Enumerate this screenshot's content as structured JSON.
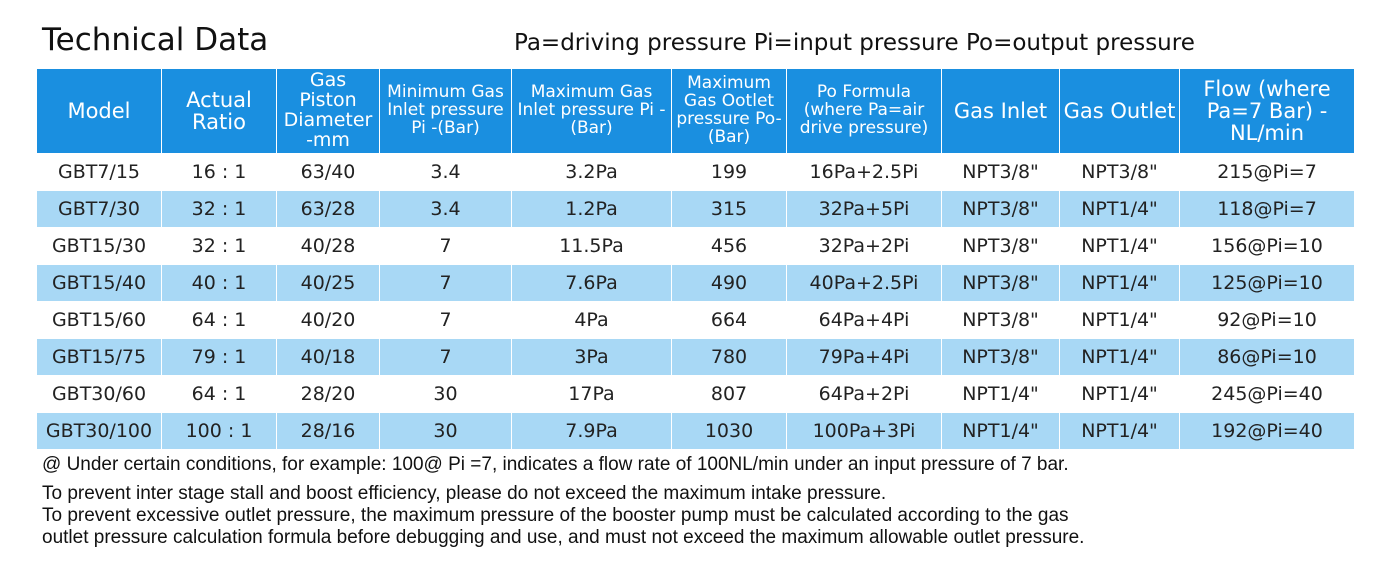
{
  "title": "Technical Data",
  "legend": "Pa=driving pressure  Pi=input pressure  Po=output pressure",
  "table": {
    "headers": [
      "Model",
      "Actual Ratio",
      "Gas Piston Diameter -mm",
      "Minimum Gas Inlet pressure Pi -(Bar)",
      "Maximum Gas Inlet pressure Pi -(Bar)",
      "Maximum Gas Ootlet pressure Po-(Bar)",
      "Po Formula (where Pa=air drive pressure)",
      "Gas Inlet",
      "Gas Outlet",
      "Flow (where Pa=7 Bar) -NL/min"
    ],
    "rows": [
      [
        "GBT7/15",
        "16 : 1",
        "63/40",
        "3.4",
        "3.2Pa",
        "199",
        "16Pa+2.5Pi",
        "NPT3/8\"",
        "NPT3/8\"",
        "215@Pi=7"
      ],
      [
        "GBT7/30",
        "32 : 1",
        "63/28",
        "3.4",
        "1.2Pa",
        "315",
        "32Pa+5Pi",
        "NPT3/8\"",
        "NPT1/4\"",
        "118@Pi=7"
      ],
      [
        "GBT15/30",
        "32 : 1",
        "40/28",
        "7",
        "11.5Pa",
        "456",
        "32Pa+2Pi",
        "NPT3/8\"",
        "NPT1/4\"",
        "156@Pi=10"
      ],
      [
        "GBT15/40",
        "40 : 1",
        "40/25",
        "7",
        "7.6Pa",
        "490",
        "40Pa+2.5Pi",
        "NPT3/8\"",
        "NPT1/4\"",
        "125@Pi=10"
      ],
      [
        "GBT15/60",
        "64 : 1",
        "40/20",
        "7",
        "4Pa",
        "664",
        "64Pa+4Pi",
        "NPT3/8\"",
        "NPT1/4\"",
        "92@Pi=10"
      ],
      [
        "GBT15/75",
        "79 : 1",
        "40/18",
        "7",
        "3Pa",
        "780",
        "79Pa+4Pi",
        "NPT3/8\"",
        "NPT1/4\"",
        "86@Pi=10"
      ],
      [
        "GBT30/60",
        "64 : 1",
        "28/20",
        "30",
        "17Pa",
        "807",
        "64Pa+2Pi",
        "NPT1/4\"",
        "NPT1/4\"",
        "245@Pi=40"
      ],
      [
        "GBT30/100",
        "100 : 1",
        "28/16",
        "30",
        "7.9Pa",
        "1030",
        "100Pa+3Pi",
        "NPT1/4\"",
        "NPT1/4\"",
        "192@Pi=40"
      ]
    ]
  },
  "notes": {
    "line1": "@ Under certain conditions, for example: 100@ Pi =7, indicates a flow rate of 100NL/min under an input pressure of 7 bar.",
    "line2": "To prevent inter stage stall and boost efficiency, please do not exceed the maximum intake pressure.",
    "line3": "To prevent excessive outlet pressure, the maximum pressure of the booster pump must be calculated according to the gas",
    "line4": "outlet pressure calculation formula before debugging and use, and must not exceed the maximum allowable outlet pressure."
  },
  "colors": {
    "header_bg": "#1a8fe0",
    "stripe_bg": "#a8d8f5"
  }
}
